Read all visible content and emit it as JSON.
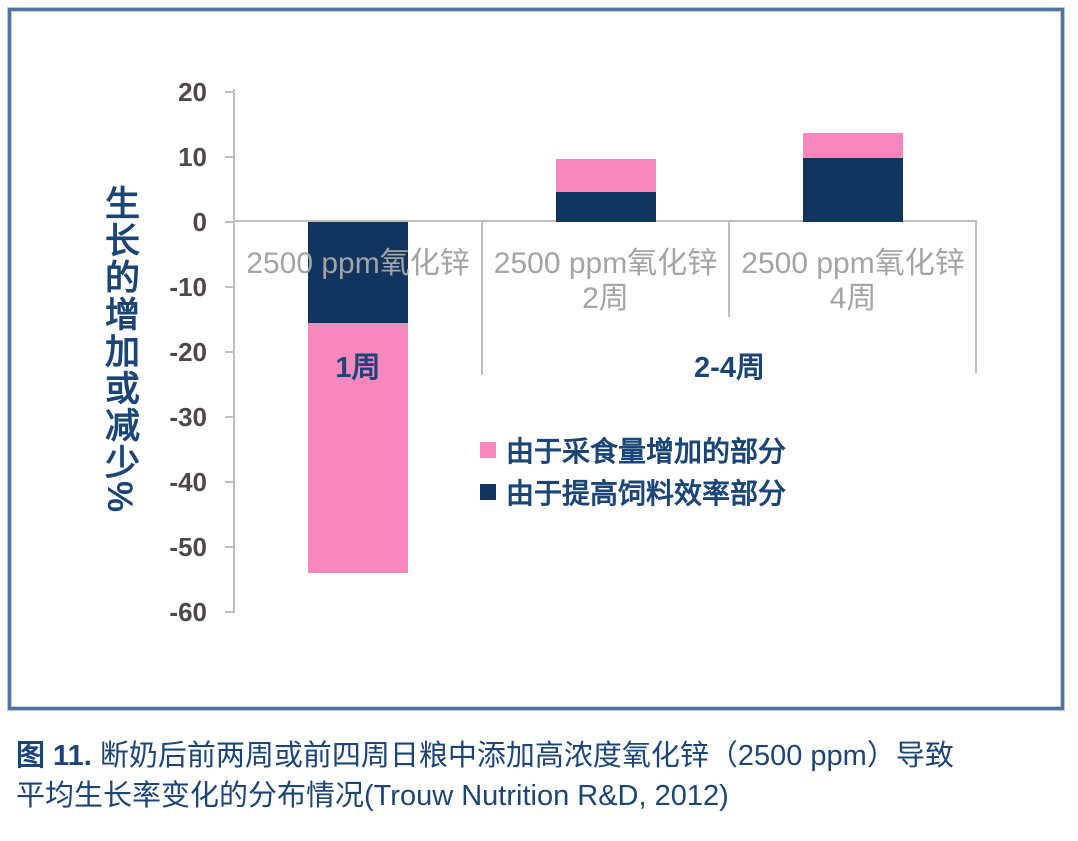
{
  "figure": {
    "caption": {
      "prefix": "图 11.",
      "line1_rest": " 断奶后前两周或前四周日粮中添加高浓度氧化锌（2500 ppm）导致",
      "line2": "平均生长率变化的分布情况(Trouw Nutrition R&D, 2012)"
    }
  },
  "chart_data": {
    "type": "bar",
    "stacked": true,
    "title": "",
    "ylabel": "生长的增加或减少%",
    "xlabel": "",
    "ylim": [
      -60,
      20
    ],
    "yticks": [
      20,
      10,
      0,
      -10,
      -20,
      -30,
      -40,
      -50,
      -60
    ],
    "grid": false,
    "legend_position": "center-right",
    "categories": [
      "2500 ppm氧化锌",
      "2500 ppm氧化锌\n2周",
      "2500 ppm氧化锌\n4周"
    ],
    "group_labels": [
      {
        "label": "1周",
        "from": 0,
        "to": 0
      },
      {
        "label": "2-4周",
        "from": 1,
        "to": 2
      }
    ],
    "series": [
      {
        "name": "由于采食量增加的部分",
        "color": "#f887bc",
        "values": [
          -38.4,
          5.1,
          3.9
        ]
      },
      {
        "name": "由于提高饲料效率部分",
        "color": "#123560",
        "values": [
          -15.5,
          4.6,
          9.8
        ]
      }
    ]
  }
}
